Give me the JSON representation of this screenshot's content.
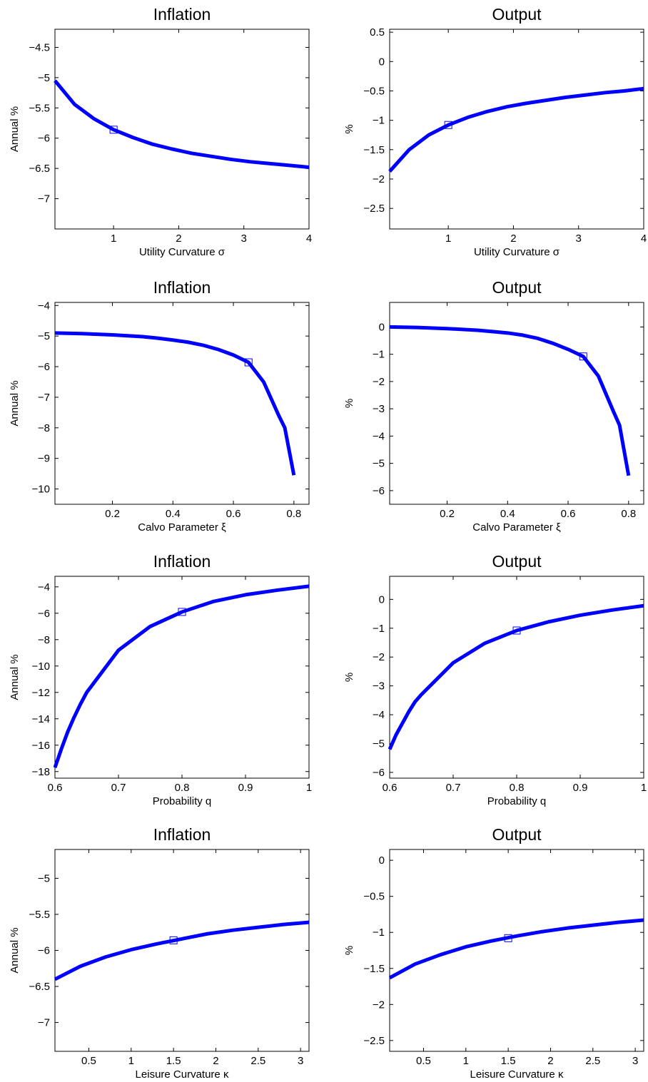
{
  "chart_data": [
    {
      "type": "line",
      "title": "Inflation",
      "xlabel": "Utility Curvature σ",
      "ylabel": "Annual %",
      "xlim": [
        0.1,
        4
      ],
      "ylim": [
        -7.5,
        -4.2
      ],
      "xticks": [
        1,
        2,
        3,
        4
      ],
      "xtick_labels": [
        "1",
        "2",
        "3",
        "4"
      ],
      "yticks": [
        -7,
        -6.5,
        -6,
        -5.5,
        -5,
        -4.5
      ],
      "ytick_labels": [
        "−7",
        "−6.5",
        "−6",
        "−5.5",
        "−5",
        "−4.5"
      ],
      "series": [
        {
          "x": [
            0.1,
            0.4,
            0.7,
            1.0,
            1.3,
            1.6,
            1.9,
            2.2,
            2.5,
            2.8,
            3.1,
            3.4,
            3.7,
            4.0
          ],
          "values": [
            -5.05,
            -5.44,
            -5.68,
            -5.86,
            -5.99,
            -6.1,
            -6.18,
            -6.25,
            -6.3,
            -6.35,
            -6.39,
            -6.42,
            -6.45,
            -6.48
          ]
        }
      ],
      "markers": [
        {
          "x": 1.0,
          "y": -5.86
        }
      ]
    },
    {
      "type": "line",
      "title": "Output",
      "xlabel": "Utility Curvature σ",
      "ylabel": "%",
      "xlim": [
        0.1,
        4
      ],
      "ylim": [
        -2.85,
        0.55
      ],
      "xticks": [
        1,
        2,
        3,
        4
      ],
      "xtick_labels": [
        "1",
        "2",
        "3",
        "4"
      ],
      "yticks": [
        -2.5,
        -2,
        -1.5,
        -1,
        -0.5,
        0,
        0.5
      ],
      "ytick_labels": [
        "−2.5",
        "−2",
        "−1.5",
        "−1",
        "−0.5",
        "0",
        "0.5"
      ],
      "series": [
        {
          "x": [
            0.1,
            0.4,
            0.7,
            1.0,
            1.3,
            1.6,
            1.9,
            2.2,
            2.5,
            2.8,
            3.1,
            3.4,
            3.7,
            4.0
          ],
          "values": [
            -1.87,
            -1.5,
            -1.25,
            -1.08,
            -0.95,
            -0.85,
            -0.77,
            -0.71,
            -0.66,
            -0.61,
            -0.57,
            -0.53,
            -0.5,
            -0.46
          ]
        }
      ],
      "markers": [
        {
          "x": 1.0,
          "y": -1.08
        }
      ]
    },
    {
      "type": "line",
      "title": "Inflation",
      "xlabel": "Calvo Parameter ξ",
      "ylabel": "Annual %",
      "xlim": [
        0.01,
        0.85
      ],
      "ylim": [
        -10.5,
        -3.9
      ],
      "xticks": [
        0.2,
        0.4,
        0.6,
        0.8
      ],
      "xtick_labels": [
        "0.2",
        "0.4",
        "0.6",
        "0.8"
      ],
      "yticks": [
        -10,
        -9,
        -8,
        -7,
        -6,
        -5,
        -4
      ],
      "ytick_labels": [
        "−10",
        "−9",
        "−8",
        "−7",
        "−6",
        "−5",
        "−4"
      ],
      "series": [
        {
          "x": [
            0.01,
            0.1,
            0.2,
            0.3,
            0.35,
            0.4,
            0.45,
            0.5,
            0.55,
            0.6,
            0.65,
            0.7,
            0.75,
            0.77,
            0.8
          ],
          "values": [
            -4.9,
            -4.92,
            -4.96,
            -5.02,
            -5.07,
            -5.13,
            -5.2,
            -5.3,
            -5.44,
            -5.62,
            -5.86,
            -6.5,
            -7.6,
            -8.0,
            -9.55
          ]
        }
      ],
      "markers": [
        {
          "x": 0.65,
          "y": -5.86
        }
      ]
    },
    {
      "type": "line",
      "title": "Output",
      "xlabel": "Calvo Parameter ξ",
      "ylabel": "%",
      "xlim": [
        0.01,
        0.85
      ],
      "ylim": [
        -6.5,
        0.9
      ],
      "xticks": [
        0.2,
        0.4,
        0.6,
        0.8
      ],
      "xtick_labels": [
        "0.2",
        "0.4",
        "0.6",
        "0.8"
      ],
      "yticks": [
        -6,
        -5,
        -4,
        -3,
        -2,
        -1,
        0
      ],
      "ytick_labels": [
        "−6",
        "−5",
        "−4",
        "−3",
        "−2",
        "−1",
        "0"
      ],
      "series": [
        {
          "x": [
            0.01,
            0.1,
            0.2,
            0.3,
            0.35,
            0.4,
            0.45,
            0.5,
            0.55,
            0.6,
            0.65,
            0.7,
            0.75,
            0.77,
            0.8
          ],
          "values": [
            0.0,
            -0.02,
            -0.06,
            -0.12,
            -0.17,
            -0.22,
            -0.3,
            -0.42,
            -0.6,
            -0.82,
            -1.08,
            -1.8,
            -3.1,
            -3.6,
            -5.45
          ]
        }
      ],
      "markers": [
        {
          "x": 0.65,
          "y": -1.08
        }
      ]
    },
    {
      "type": "line",
      "title": "Inflation",
      "xlabel": "Probability q",
      "ylabel": "Annual %",
      "xlim": [
        0.6,
        1.0
      ],
      "ylim": [
        -18.5,
        -3.2
      ],
      "xticks": [
        0.6,
        0.7,
        0.8,
        0.9,
        1.0
      ],
      "xtick_labels": [
        "0.6",
        "0.7",
        "0.8",
        "0.9",
        "1"
      ],
      "yticks": [
        -18,
        -16,
        -14,
        -12,
        -10,
        -8,
        -6,
        -4
      ],
      "ytick_labels": [
        "−18",
        "−16",
        "−14",
        "−12",
        "−10",
        "−8",
        "−6",
        "−4"
      ],
      "series": [
        {
          "x": [
            0.6,
            0.61,
            0.62,
            0.63,
            0.64,
            0.65,
            0.7,
            0.75,
            0.8,
            0.85,
            0.9,
            0.95,
            1.0
          ],
          "values": [
            -17.7,
            -16.3,
            -15.0,
            -13.9,
            -12.9,
            -12.0,
            -8.8,
            -7.0,
            -5.9,
            -5.1,
            -4.6,
            -4.25,
            -3.95
          ]
        }
      ],
      "markers": [
        {
          "x": 0.8,
          "y": -5.9
        }
      ]
    },
    {
      "type": "line",
      "title": "Output",
      "xlabel": "Probability q",
      "ylabel": "%",
      "xlim": [
        0.6,
        1.0
      ],
      "ylim": [
        -6.2,
        0.8
      ],
      "xticks": [
        0.6,
        0.7,
        0.8,
        0.9,
        1.0
      ],
      "xtick_labels": [
        "0.6",
        "0.7",
        "0.8",
        "0.9",
        "1"
      ],
      "yticks": [
        -6,
        -5,
        -4,
        -3,
        -2,
        -1,
        0
      ],
      "ytick_labels": [
        "−6",
        "−5",
        "−4",
        "−3",
        "−2",
        "−1",
        "0"
      ],
      "series": [
        {
          "x": [
            0.6,
            0.61,
            0.62,
            0.63,
            0.64,
            0.65,
            0.7,
            0.75,
            0.8,
            0.85,
            0.9,
            0.95,
            1.0
          ],
          "values": [
            -5.2,
            -4.7,
            -4.3,
            -3.9,
            -3.55,
            -3.3,
            -2.2,
            -1.52,
            -1.08,
            -0.78,
            -0.55,
            -0.37,
            -0.22
          ]
        }
      ],
      "markers": [
        {
          "x": 0.8,
          "y": -1.08
        }
      ]
    },
    {
      "type": "line",
      "title": "Inflation",
      "xlabel": "Leisure Curvature κ",
      "ylabel": "Annual %",
      "xlim": [
        0.1,
        3.1
      ],
      "ylim": [
        -7.4,
        -4.6
      ],
      "xticks": [
        0.5,
        1,
        1.5,
        2,
        2.5,
        3
      ],
      "xtick_labels": [
        "0.5",
        "1",
        "1.5",
        "2",
        "2.5",
        "3"
      ],
      "yticks": [
        -7,
        -6.5,
        -6,
        -5.5,
        -5
      ],
      "ytick_labels": [
        "−7",
        "−6.5",
        "−6",
        "−5.5",
        "−5"
      ],
      "series": [
        {
          "x": [
            0.1,
            0.4,
            0.7,
            1.0,
            1.3,
            1.6,
            1.9,
            2.2,
            2.5,
            2.8,
            3.1
          ],
          "values": [
            -6.4,
            -6.22,
            -6.09,
            -5.99,
            -5.91,
            -5.84,
            -5.77,
            -5.72,
            -5.68,
            -5.64,
            -5.61
          ]
        }
      ],
      "markers": [
        {
          "x": 1.5,
          "y": -5.86
        }
      ]
    },
    {
      "type": "line",
      "title": "Output",
      "xlabel": "Leisure Curvature κ",
      "ylabel": "%",
      "xlim": [
        0.1,
        3.1
      ],
      "ylim": [
        -2.65,
        0.15
      ],
      "xticks": [
        0.5,
        1,
        1.5,
        2,
        2.5,
        3
      ],
      "xtick_labels": [
        "0.5",
        "1",
        "1.5",
        "2",
        "2.5",
        "3"
      ],
      "yticks": [
        -2.5,
        -2,
        -1.5,
        -1,
        -0.5,
        0
      ],
      "ytick_labels": [
        "−2.5",
        "−2",
        "−1.5",
        "−1",
        "−0.5",
        "0"
      ],
      "series": [
        {
          "x": [
            0.1,
            0.4,
            0.7,
            1.0,
            1.3,
            1.6,
            1.9,
            2.2,
            2.5,
            2.8,
            3.1
          ],
          "values": [
            -1.63,
            -1.44,
            -1.31,
            -1.2,
            -1.12,
            -1.05,
            -0.99,
            -0.94,
            -0.9,
            -0.86,
            -0.83
          ]
        }
      ],
      "markers": [
        {
          "x": 1.5,
          "y": -1.08
        }
      ]
    }
  ]
}
